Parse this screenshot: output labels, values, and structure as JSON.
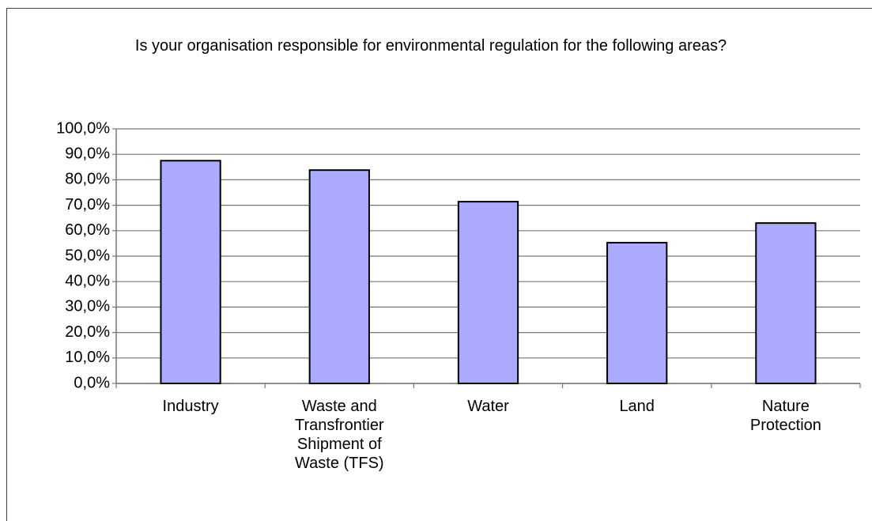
{
  "chart_data": {
    "type": "bar",
    "title": "Is your organisation responsible for environmental regulation for the following areas?",
    "categories": [
      "Industry",
      "Waste and Transfrontier Shipment of Waste (TFS)",
      "Water",
      "Land",
      "Nature Protection"
    ],
    "values": [
      87.5,
      83.8,
      71.4,
      55.3,
      63.0
    ],
    "color": "#aaaaff",
    "ylim": [
      0,
      100
    ],
    "yticks": [
      {
        "value": 0,
        "label": "0,0%"
      },
      {
        "value": 10,
        "label": "10,0%"
      },
      {
        "value": 20,
        "label": "20,0%"
      },
      {
        "value": 30,
        "label": "30,0%"
      },
      {
        "value": 40,
        "label": "40,0%"
      },
      {
        "value": 50,
        "label": "50,0%"
      },
      {
        "value": 60,
        "label": "60,0%"
      },
      {
        "value": 70,
        "label": "70,0%"
      },
      {
        "value": 80,
        "label": "80,0%"
      },
      {
        "value": 90,
        "label": "90,0%"
      },
      {
        "value": 100,
        "label": "100,0%"
      }
    ],
    "grid": true
  }
}
